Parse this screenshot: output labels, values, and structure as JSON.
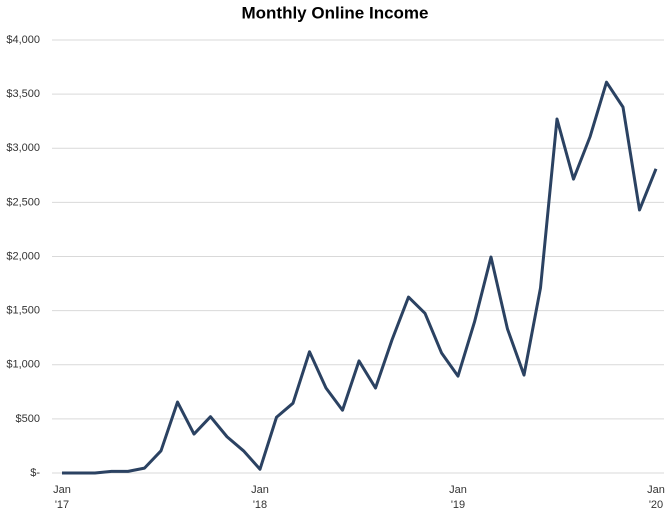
{
  "chart_data": {
    "type": "line",
    "title": "Monthly Online Income",
    "categories": [
      "Jan '17",
      null,
      null,
      null,
      null,
      null,
      null,
      null,
      null,
      null,
      null,
      null,
      "Jan '18",
      null,
      null,
      null,
      null,
      null,
      null,
      null,
      null,
      null,
      null,
      null,
      "Jan '19",
      null,
      null,
      null,
      null,
      null,
      null,
      null,
      null,
      null,
      null,
      null,
      "Jan '20"
    ],
    "values": [
      0,
      0,
      0,
      15,
      15,
      45,
      205,
      655,
      360,
      520,
      335,
      205,
      35,
      515,
      645,
      1120,
      785,
      580,
      1035,
      785,
      1230,
      1625,
      1475,
      1110,
      895,
      1395,
      1995,
      1330,
      905,
      1710,
      3270,
      2715,
      3105,
      3610,
      3380,
      2430,
      2810
    ],
    "color": "#2b4262",
    "ylim": [
      0,
      4000
    ],
    "yticks": [
      {
        "value": 0,
        "label": "$-"
      },
      {
        "value": 500,
        "label": "$500"
      },
      {
        "value": 1000,
        "label": "$1,000"
      },
      {
        "value": 1500,
        "label": "$1,500"
      },
      {
        "value": 2000,
        "label": "$2,000"
      },
      {
        "value": 2500,
        "label": "$2,500"
      },
      {
        "value": 3000,
        "label": "$3,000"
      },
      {
        "value": 3500,
        "label": "$3,500"
      },
      {
        "value": 4000,
        "label": "$4,000"
      }
    ],
    "grid": true
  }
}
